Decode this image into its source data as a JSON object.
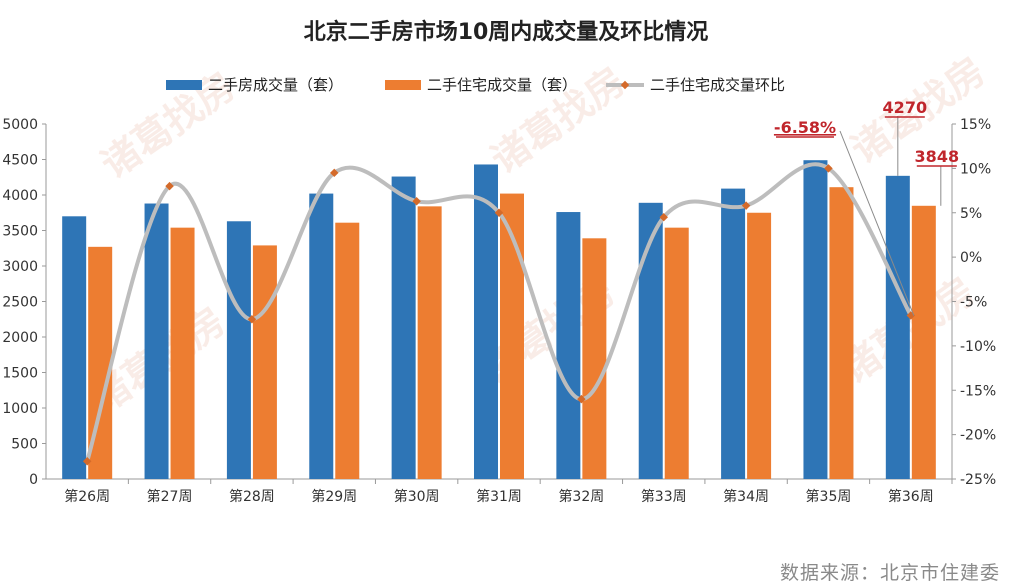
{
  "chart_data": {
    "type": "bar+line",
    "title": "北京二手房市场10周内成交量及环比情况",
    "categories": [
      "第26周",
      "第27周",
      "第28周",
      "第29周",
      "第30周",
      "第31周",
      "第32周",
      "第33周",
      "第34周",
      "第35周",
      "第36周"
    ],
    "series": [
      {
        "name": "二手房成交量（套）",
        "type": "bar",
        "axis": "left",
        "color": "#2e75b6",
        "values": [
          3700,
          3880,
          3630,
          4020,
          4260,
          4430,
          3760,
          3890,
          4090,
          4490,
          4270
        ]
      },
      {
        "name": "二手住宅成交量（套）",
        "type": "bar",
        "axis": "left",
        "color": "#ed7d31",
        "values": [
          3270,
          3540,
          3290,
          3610,
          3840,
          4020,
          3390,
          3540,
          3750,
          4110,
          3848
        ]
      },
      {
        "name": "二手住宅成交量环比",
        "type": "line",
        "axis": "right",
        "color": "#bdbdbd",
        "marker_color": "#d46a2a",
        "values": [
          -23.0,
          8.0,
          -7.0,
          9.5,
          6.3,
          5.0,
          -16.0,
          4.5,
          5.8,
          10.0,
          -6.58
        ]
      }
    ],
    "y_left": {
      "min": 0,
      "max": 5000,
      "step": 500,
      "tick_labels": [
        "0",
        "500",
        "1000",
        "1500",
        "2000",
        "2500",
        "3000",
        "3500",
        "4000",
        "4500",
        "5000"
      ]
    },
    "y_right": {
      "min": -25,
      "max": 15,
      "step": 5,
      "tick_labels": [
        "-25%",
        "-20%",
        "-15%",
        "-10%",
        "-5%",
        "0%",
        "5%",
        "10%",
        "15%"
      ]
    },
    "annotations": [
      {
        "text": "-6.58%",
        "target": "line",
        "index": 10
      },
      {
        "text": "4270",
        "target": "series0",
        "index": 10
      },
      {
        "text": "3848",
        "target": "series1",
        "index": 10
      }
    ],
    "legend": "top"
  },
  "watermark": "诸葛找房",
  "source": "数据来源：北京市住建委"
}
